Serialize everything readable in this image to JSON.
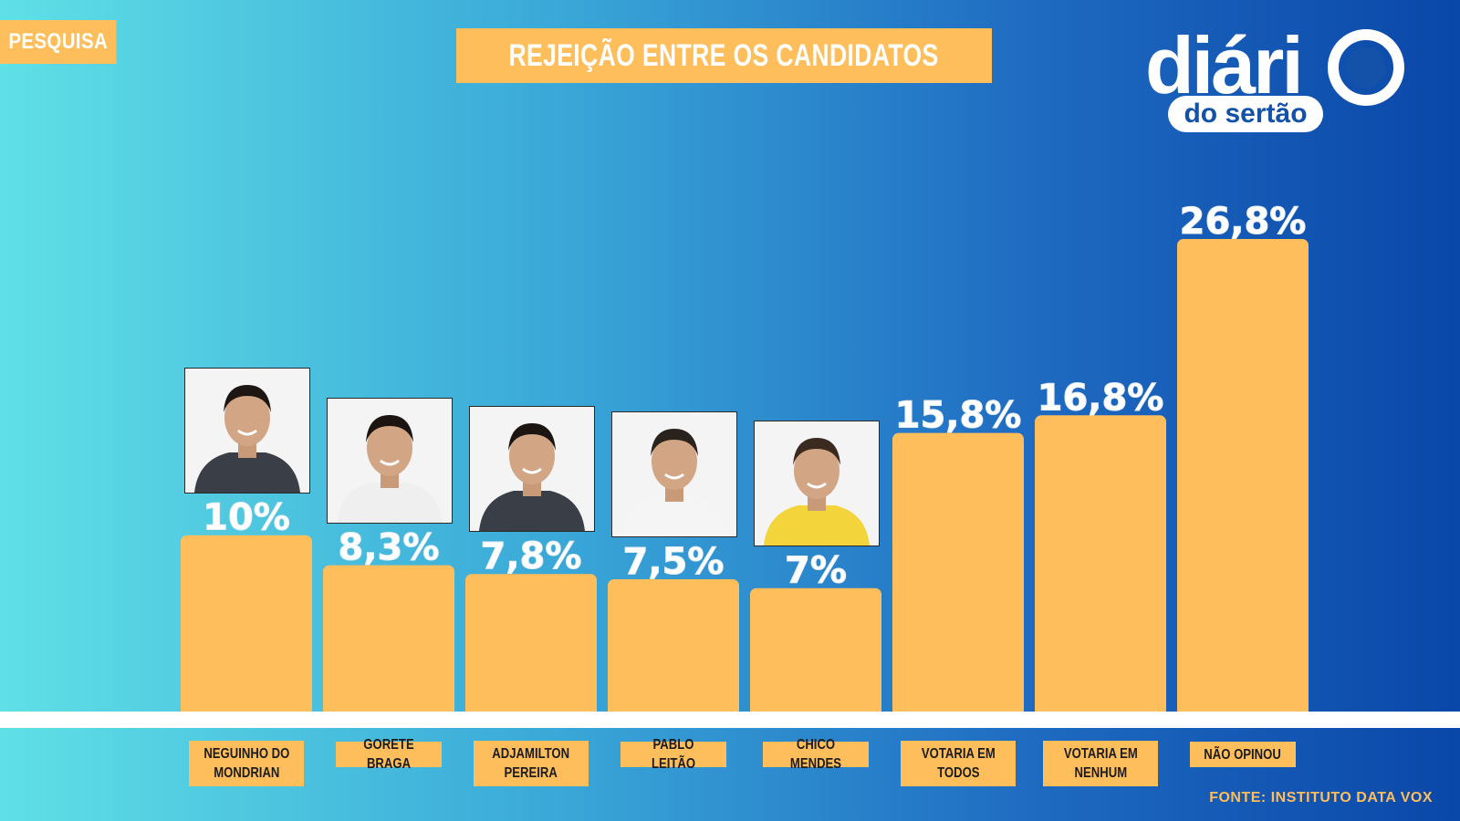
{
  "tag": "PESQUISA",
  "title": "REJEIÇÃO ENTRE OS CANDIDATOS",
  "logo": {
    "word": "diári",
    "sub": "do sertão"
  },
  "source": "FONTE: INSTITUTO DATA VOX",
  "colors": {
    "bar": "#ffbe5c",
    "label_text": "#ffffff",
    "accent_dark": "#0a47a8",
    "accent_light": "#5fe0e6"
  },
  "chart_data": {
    "type": "bar",
    "title": "REJEIÇÃO ENTRE OS CANDIDATOS",
    "categories": [
      "NEGUINHO DO\nMONDRIAN",
      "GORETE BRAGA",
      "ADJAMILTON\nPEREIRA",
      "PABLO LEITÃO",
      "CHICO MENDES",
      "VOTARIA EM\nTODOS",
      "VOTARIA EM\nNENHUM",
      "NÃO OPINOU"
    ],
    "values": [
      10,
      8.3,
      7.8,
      7.5,
      7,
      15.8,
      16.8,
      26.8
    ],
    "value_labels": [
      "10%",
      "8,3%",
      "7,8%",
      "7,5%",
      "7%",
      "15,8%",
      "16,8%",
      "26,8%"
    ],
    "photos": [
      "candidate-photo",
      "candidate-photo",
      "candidate-photo",
      "candidate-photo",
      "candidate-photo",
      null,
      null,
      null
    ],
    "ylim": [
      0,
      26.8
    ],
    "grid": false,
    "legend": "none"
  }
}
